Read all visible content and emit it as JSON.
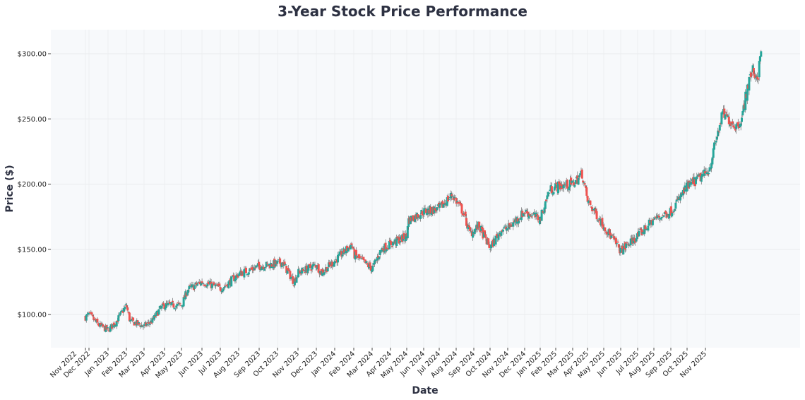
{
  "chart_data": {
    "type": "candlestick",
    "title": "3-Year Stock Price Performance",
    "xlabel": "Date",
    "ylabel": "Price ($)",
    "ylim": [
      75,
      320
    ],
    "y_ticks": [
      "$100.00",
      "$150.00",
      "$200.00",
      "$250.00",
      "$300.00"
    ],
    "y_tick_values": [
      100,
      150,
      200,
      250,
      300
    ],
    "x_ticks": [
      "Nov 2022",
      "Dec 2022",
      "Jan 2023",
      "Feb 2023",
      "Mar 2023",
      "Apr 2023",
      "May 2023",
      "Jun 2023",
      "Jul 2023",
      "Aug 2023",
      "Sep 2023",
      "Oct 2023",
      "Nov 2023",
      "Dec 2023",
      "Jan 2024",
      "Feb 2024",
      "Mar 2024",
      "Apr 2024",
      "May 2024",
      "Jun 2024",
      "Jul 2024",
      "Aug 2024",
      "Sep 2024",
      "Oct 2024",
      "Nov 2024",
      "Dec 2024",
      "Jan 2025",
      "Feb 2025",
      "Mar 2025",
      "Apr 2025",
      "May 2025",
      "Jun 2025",
      "Jul 2025",
      "Aug 2025",
      "Sep 2025",
      "Oct 2025",
      "Nov 2025"
    ],
    "grid": true,
    "colors": {
      "up": "#26a69a",
      "down": "#ef5350",
      "background": "#f7f9fb",
      "title": "#2d3142"
    },
    "close_trend": [
      {
        "date": "2022-11-01",
        "close": 98
      },
      {
        "date": "2022-12-01",
        "close": 100
      },
      {
        "date": "2022-12-16",
        "close": 92
      },
      {
        "date": "2023-01-01",
        "close": 88
      },
      {
        "date": "2023-01-15",
        "close": 95
      },
      {
        "date": "2023-02-01",
        "close": 107
      },
      {
        "date": "2023-02-07",
        "close": 95
      },
      {
        "date": "2023-03-01",
        "close": 91
      },
      {
        "date": "2023-03-13",
        "close": 95
      },
      {
        "date": "2023-03-24",
        "close": 104
      },
      {
        "date": "2023-04-01",
        "close": 107
      },
      {
        "date": "2023-05-01",
        "close": 107
      },
      {
        "date": "2023-05-10",
        "close": 119
      },
      {
        "date": "2023-06-01",
        "close": 125
      },
      {
        "date": "2023-07-01",
        "close": 120
      },
      {
        "date": "2023-07-09",
        "close": 122
      },
      {
        "date": "2023-08-01",
        "close": 131
      },
      {
        "date": "2023-09-01",
        "close": 137
      },
      {
        "date": "2023-10-01",
        "close": 139
      },
      {
        "date": "2023-10-08",
        "close": 140
      },
      {
        "date": "2023-10-25",
        "close": 125
      },
      {
        "date": "2023-11-01",
        "close": 132
      },
      {
        "date": "2023-12-01",
        "close": 138
      },
      {
        "date": "2023-12-09",
        "close": 132
      },
      {
        "date": "2024-01-01",
        "close": 141
      },
      {
        "date": "2024-01-28",
        "close": 154
      },
      {
        "date": "2024-02-01",
        "close": 146
      },
      {
        "date": "2024-03-01",
        "close": 135
      },
      {
        "date": "2024-03-16",
        "close": 150
      },
      {
        "date": "2024-04-01",
        "close": 154
      },
      {
        "date": "2024-05-01",
        "close": 160
      },
      {
        "date": "2024-05-03",
        "close": 172
      },
      {
        "date": "2024-06-01",
        "close": 179
      },
      {
        "date": "2024-07-01",
        "close": 181
      },
      {
        "date": "2024-07-24",
        "close": 192
      },
      {
        "date": "2024-08-12",
        "close": 179
      },
      {
        "date": "2024-08-25",
        "close": 162
      },
      {
        "date": "2024-09-10",
        "close": 168
      },
      {
        "date": "2024-10-01",
        "close": 151
      },
      {
        "date": "2024-10-20",
        "close": 165
      },
      {
        "date": "2024-11-01",
        "close": 166
      },
      {
        "date": "2024-12-01",
        "close": 179
      },
      {
        "date": "2025-01-01",
        "close": 173
      },
      {
        "date": "2025-01-18",
        "close": 195
      },
      {
        "date": "2025-02-01",
        "close": 198
      },
      {
        "date": "2025-03-01",
        "close": 200
      },
      {
        "date": "2025-03-20",
        "close": 208
      },
      {
        "date": "2025-04-01",
        "close": 187
      },
      {
        "date": "2025-05-01",
        "close": 168
      },
      {
        "date": "2025-06-01",
        "close": 149
      },
      {
        "date": "2025-07-01",
        "close": 160
      },
      {
        "date": "2025-08-01",
        "close": 173
      },
      {
        "date": "2025-09-01",
        "close": 179
      },
      {
        "date": "2025-10-01",
        "close": 198
      },
      {
        "date": "2025-11-01",
        "close": 208
      },
      {
        "date": "2025-11-08",
        "close": 212
      },
      {
        "date": "2025-11-20",
        "close": 235
      },
      {
        "date": "2025-12-01",
        "close": 254
      },
      {
        "date": "2025-12-25",
        "close": 244
      },
      {
        "date": "2026-01-05",
        "close": 252
      },
      {
        "date": "2026-01-13",
        "close": 273
      },
      {
        "date": "2026-01-22",
        "close": 287
      },
      {
        "date": "2026-02-02",
        "close": 282
      },
      {
        "date": "2026-02-08",
        "close": 303
      }
    ]
  }
}
